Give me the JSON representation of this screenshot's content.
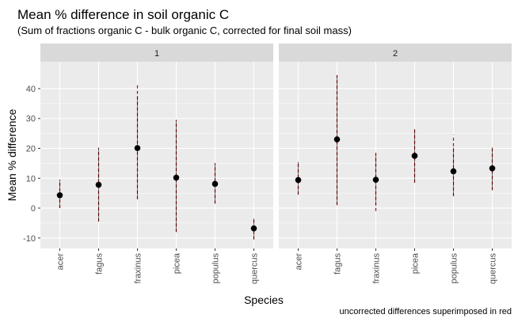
{
  "chart_data": {
    "type": "scatter",
    "title": "Mean % difference in soil organic C",
    "subtitle": "(Sum of fractions organic C - bulk organic C, corrected for final soil mass)",
    "xlabel": "Species",
    "ylabel": "Mean % difference",
    "caption": "uncorrected differences superimposed in red",
    "categories": [
      "acer",
      "fagus",
      "fraxinus",
      "picea",
      "populus",
      "quercus"
    ],
    "ylim": [
      -13.5,
      49
    ],
    "yticks": [
      -10,
      0,
      10,
      20,
      30,
      40
    ],
    "grid": true,
    "colors": {
      "corrected": "#000000",
      "uncorrected": "#cc0000",
      "panel": "#ebebeb",
      "strip": "#d9d9d9",
      "grid": "#ffffff"
    },
    "panels": [
      {
        "label": "1",
        "corrected": [
          {
            "species": "acer",
            "mean": 4.3,
            "low": 0,
            "high": 9.5
          },
          {
            "species": "fagus",
            "mean": 7.8,
            "low": -4.5,
            "high": 20.3
          },
          {
            "species": "fraxinus",
            "mean": 20.1,
            "low": 3,
            "high": 37.5
          },
          {
            "species": "picea",
            "mean": 10.2,
            "low": -8,
            "high": 29.5
          },
          {
            "species": "populus",
            "mean": 8.1,
            "low": 1.5,
            "high": 15
          },
          {
            "species": "quercus",
            "mean": -6.8,
            "low": -10.5,
            "high": -3.5
          }
        ],
        "uncorrected": [
          {
            "species": "acer",
            "low": 0,
            "high": 9.5
          },
          {
            "species": "fagus",
            "low": -4.5,
            "high": 20
          },
          {
            "species": "fraxinus",
            "low": 3,
            "high": 41.5
          },
          {
            "species": "picea",
            "low": -8,
            "high": 29.5
          },
          {
            "species": "populus",
            "low": 1.5,
            "high": 15
          },
          {
            "species": "quercus",
            "low": -10.5,
            "high": -3.5
          }
        ]
      },
      {
        "label": "2",
        "corrected": [
          {
            "species": "acer",
            "mean": 9.4,
            "low": 4.5,
            "high": 15.5
          },
          {
            "species": "fagus",
            "mean": 23.0,
            "low": 1,
            "high": 44.5
          },
          {
            "species": "fraxinus",
            "mean": 9.5,
            "low": 1,
            "high": 18
          },
          {
            "species": "picea",
            "mean": 17.5,
            "low": 8.5,
            "high": 26.5
          },
          {
            "species": "populus",
            "mean": 12.3,
            "low": 4,
            "high": 20.3
          },
          {
            "species": "quercus",
            "mean": 13.3,
            "low": 6,
            "high": 20.3
          }
        ],
        "uncorrected": [
          {
            "species": "acer",
            "low": 4.5,
            "high": 15.5
          },
          {
            "species": "fagus",
            "low": 1,
            "high": 44.5
          },
          {
            "species": "fraxinus",
            "low": -1,
            "high": 18.5
          },
          {
            "species": "picea",
            "low": 8.5,
            "high": 26.5
          },
          {
            "species": "populus",
            "low": 4,
            "high": 24.5
          },
          {
            "species": "quercus",
            "low": 6,
            "high": 20
          }
        ]
      }
    ]
  }
}
